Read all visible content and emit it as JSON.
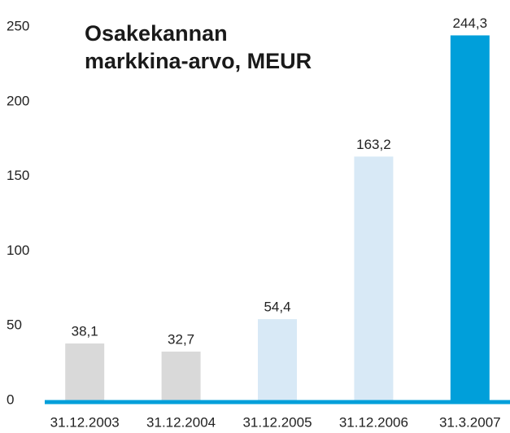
{
  "chart_data": {
    "type": "bar",
    "title": "Osakekannan\nmarkkina-arvo, MEUR",
    "categories": [
      "31.12.2003",
      "31.12.2004",
      "31.12.2005",
      "31.12.2006",
      "31.3.2007"
    ],
    "values": [
      38.1,
      32.7,
      54.4,
      163.2,
      244.3
    ],
    "value_labels": [
      "38,1",
      "32,7",
      "54,4",
      "163,2",
      "244,3"
    ],
    "colors": [
      "#d9d9d9",
      "#d9d9d9",
      "#d8e9f6",
      "#d8e9f6",
      "#009fda"
    ],
    "ylim": [
      0,
      250
    ],
    "yticks": [
      0,
      50,
      100,
      150,
      200,
      250
    ],
    "grid": false
  }
}
